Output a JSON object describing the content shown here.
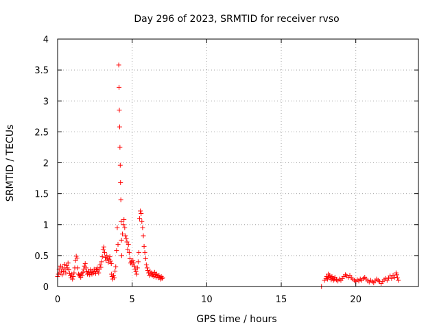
{
  "chart_data": {
    "type": "scatter",
    "title": "Day 296 of 2023, SRMTID for receiver rvso",
    "xlabel": "GPS time / hours",
    "ylabel": "SRMTID / TECUs",
    "xlim": [
      0,
      24.2
    ],
    "ylim": [
      0,
      4
    ],
    "xticks": [
      0,
      5,
      10,
      15,
      20
    ],
    "xtick_labels": [
      "0",
      "5",
      "10",
      "15",
      "20"
    ],
    "yticks": [
      0,
      0.5,
      1,
      1.5,
      2,
      2.5,
      3,
      3.5,
      4
    ],
    "ytick_labels": [
      "0",
      "0.5",
      "1",
      "1.5",
      "2",
      "2.5",
      "3",
      "3.5",
      "4"
    ],
    "grid": true,
    "marker": "plus",
    "color": "#ff0000",
    "series": [
      {
        "name": "rvso",
        "points": [
          [
            0.0,
            0.16
          ],
          [
            0.05,
            0.2
          ],
          [
            0.1,
            0.28
          ],
          [
            0.15,
            0.22
          ],
          [
            0.2,
            0.33
          ],
          [
            0.25,
            0.25
          ],
          [
            0.3,
            0.19
          ],
          [
            0.35,
            0.3
          ],
          [
            0.4,
            0.24
          ],
          [
            0.45,
            0.36
          ],
          [
            0.5,
            0.28
          ],
          [
            0.55,
            0.22
          ],
          [
            0.6,
            0.34
          ],
          [
            0.65,
            0.3
          ],
          [
            0.7,
            0.38
          ],
          [
            0.75,
            0.27
          ],
          [
            0.8,
            0.21
          ],
          [
            0.85,
            0.18
          ],
          [
            0.9,
            0.14
          ],
          [
            0.95,
            0.2
          ],
          [
            1.0,
            0.12
          ],
          [
            1.05,
            0.16
          ],
          [
            1.1,
            0.22
          ],
          [
            1.15,
            0.3
          ],
          [
            1.2,
            0.42
          ],
          [
            1.25,
            0.49
          ],
          [
            1.3,
            0.46
          ],
          [
            1.35,
            0.3
          ],
          [
            1.4,
            0.2
          ],
          [
            1.45,
            0.17
          ],
          [
            1.5,
            0.19
          ],
          [
            1.55,
            0.15
          ],
          [
            1.6,
            0.21
          ],
          [
            1.65,
            0.18
          ],
          [
            1.7,
            0.23
          ],
          [
            1.75,
            0.28
          ],
          [
            1.8,
            0.33
          ],
          [
            1.85,
            0.37
          ],
          [
            1.9,
            0.3
          ],
          [
            1.95,
            0.24
          ],
          [
            2.0,
            0.2
          ],
          [
            2.05,
            0.25
          ],
          [
            2.1,
            0.22
          ],
          [
            2.15,
            0.19
          ],
          [
            2.2,
            0.27
          ],
          [
            2.25,
            0.23
          ],
          [
            2.3,
            0.2
          ],
          [
            2.35,
            0.25
          ],
          [
            2.4,
            0.22
          ],
          [
            2.45,
            0.28
          ],
          [
            2.5,
            0.24
          ],
          [
            2.55,
            0.21
          ],
          [
            2.6,
            0.27
          ],
          [
            2.65,
            0.3
          ],
          [
            2.7,
            0.25
          ],
          [
            2.75,
            0.22
          ],
          [
            2.8,
            0.28
          ],
          [
            2.85,
            0.35
          ],
          [
            2.9,
            0.31
          ],
          [
            2.95,
            0.4
          ],
          [
            3.0,
            0.48
          ],
          [
            3.05,
            0.6
          ],
          [
            3.1,
            0.64
          ],
          [
            3.15,
            0.55
          ],
          [
            3.2,
            0.47
          ],
          [
            3.25,
            0.42
          ],
          [
            3.3,
            0.5
          ],
          [
            3.35,
            0.45
          ],
          [
            3.4,
            0.39
          ],
          [
            3.45,
            0.44
          ],
          [
            3.5,
            0.48
          ],
          [
            3.55,
            0.41
          ],
          [
            3.6,
            0.37
          ],
          [
            3.62,
            0.2
          ],
          [
            3.65,
            0.16
          ],
          [
            3.7,
            0.12
          ],
          [
            3.75,
            0.18
          ],
          [
            3.8,
            0.14
          ],
          [
            3.85,
            0.25
          ],
          [
            3.9,
            0.32
          ],
          [
            3.95,
            0.58
          ],
          [
            4.0,
            0.95
          ],
          [
            4.05,
            0.68
          ],
          [
            4.1,
            3.58
          ],
          [
            4.12,
            3.22
          ],
          [
            4.14,
            2.85
          ],
          [
            4.16,
            2.58
          ],
          [
            4.18,
            2.25
          ],
          [
            4.2,
            1.96
          ],
          [
            4.22,
            1.68
          ],
          [
            4.24,
            1.4
          ],
          [
            4.26,
            1.05
          ],
          [
            4.28,
            0.75
          ],
          [
            4.3,
            0.5
          ],
          [
            4.35,
            0.85
          ],
          [
            4.4,
            1.0
          ],
          [
            4.45,
            1.08
          ],
          [
            4.5,
            0.95
          ],
          [
            4.55,
            0.82
          ],
          [
            4.6,
            0.78
          ],
          [
            4.65,
            0.72
          ],
          [
            4.7,
            0.6
          ],
          [
            4.75,
            0.68
          ],
          [
            4.8,
            0.55
          ],
          [
            4.85,
            0.45
          ],
          [
            4.9,
            0.38
          ],
          [
            4.95,
            0.4
          ],
          [
            5.0,
            0.35
          ],
          [
            5.05,
            0.42
          ],
          [
            5.1,
            0.38
          ],
          [
            5.15,
            0.33
          ],
          [
            5.2,
            0.28
          ],
          [
            5.25,
            0.24
          ],
          [
            5.3,
            0.2
          ],
          [
            5.35,
            0.3
          ],
          [
            5.4,
            0.4
          ],
          [
            5.45,
            0.55
          ],
          [
            5.5,
            1.1
          ],
          [
            5.55,
            1.22
          ],
          [
            5.6,
            1.18
          ],
          [
            5.65,
            1.05
          ],
          [
            5.7,
            0.95
          ],
          [
            5.75,
            0.82
          ],
          [
            5.8,
            0.65
          ],
          [
            5.85,
            0.55
          ],
          [
            5.9,
            0.45
          ],
          [
            5.95,
            0.35
          ],
          [
            6.0,
            0.3
          ],
          [
            6.05,
            0.26
          ],
          [
            6.1,
            0.22
          ],
          [
            6.15,
            0.18
          ],
          [
            6.2,
            0.25
          ],
          [
            6.25,
            0.2
          ],
          [
            6.3,
            0.22
          ],
          [
            6.35,
            0.18
          ],
          [
            6.4,
            0.2
          ],
          [
            6.45,
            0.16
          ],
          [
            6.5,
            0.23
          ],
          [
            6.55,
            0.19
          ],
          [
            6.6,
            0.15
          ],
          [
            6.65,
            0.2
          ],
          [
            6.7,
            0.17
          ],
          [
            6.75,
            0.14
          ],
          [
            6.8,
            0.18
          ],
          [
            6.85,
            0.15
          ],
          [
            6.9,
            0.12
          ],
          [
            6.95,
            0.16
          ],
          [
            7.0,
            0.13
          ],
          [
            7.05,
            0.14
          ],
          [
            17.7,
            0.0
          ],
          [
            17.9,
            0.1
          ],
          [
            18.0,
            0.13
          ],
          [
            18.05,
            0.16
          ],
          [
            18.1,
            0.12
          ],
          [
            18.15,
            0.2
          ],
          [
            18.2,
            0.15
          ],
          [
            18.25,
            0.18
          ],
          [
            18.3,
            0.14
          ],
          [
            18.35,
            0.11
          ],
          [
            18.4,
            0.16
          ],
          [
            18.45,
            0.13
          ],
          [
            18.5,
            0.1
          ],
          [
            18.55,
            0.12
          ],
          [
            18.6,
            0.15
          ],
          [
            18.7,
            0.11
          ],
          [
            18.8,
            0.09
          ],
          [
            18.9,
            0.12
          ],
          [
            19.0,
            0.1
          ],
          [
            19.1,
            0.13
          ],
          [
            19.2,
            0.16
          ],
          [
            19.3,
            0.19
          ],
          [
            19.4,
            0.17
          ],
          [
            19.5,
            0.15
          ],
          [
            19.6,
            0.18
          ],
          [
            19.7,
            0.14
          ],
          [
            19.8,
            0.12
          ],
          [
            19.9,
            0.1
          ],
          [
            20.0,
            0.08
          ],
          [
            20.1,
            0.11
          ],
          [
            20.2,
            0.09
          ],
          [
            20.3,
            0.12
          ],
          [
            20.4,
            0.1
          ],
          [
            20.5,
            0.13
          ],
          [
            20.6,
            0.15
          ],
          [
            20.7,
            0.12
          ],
          [
            20.8,
            0.09
          ],
          [
            20.9,
            0.07
          ],
          [
            21.0,
            0.1
          ],
          [
            21.1,
            0.08
          ],
          [
            21.2,
            0.06
          ],
          [
            21.3,
            0.09
          ],
          [
            21.4,
            0.12
          ],
          [
            21.5,
            0.1
          ],
          [
            21.6,
            0.08
          ],
          [
            21.7,
            0.05
          ],
          [
            21.8,
            0.08
          ],
          [
            21.9,
            0.11
          ],
          [
            22.0,
            0.13
          ],
          [
            22.1,
            0.1
          ],
          [
            22.2,
            0.14
          ],
          [
            22.3,
            0.17
          ],
          [
            22.4,
            0.13
          ],
          [
            22.5,
            0.18
          ],
          [
            22.6,
            0.15
          ],
          [
            22.7,
            0.22
          ],
          [
            22.75,
            0.19
          ],
          [
            22.8,
            0.14
          ],
          [
            22.85,
            0.1
          ]
        ]
      }
    ]
  }
}
